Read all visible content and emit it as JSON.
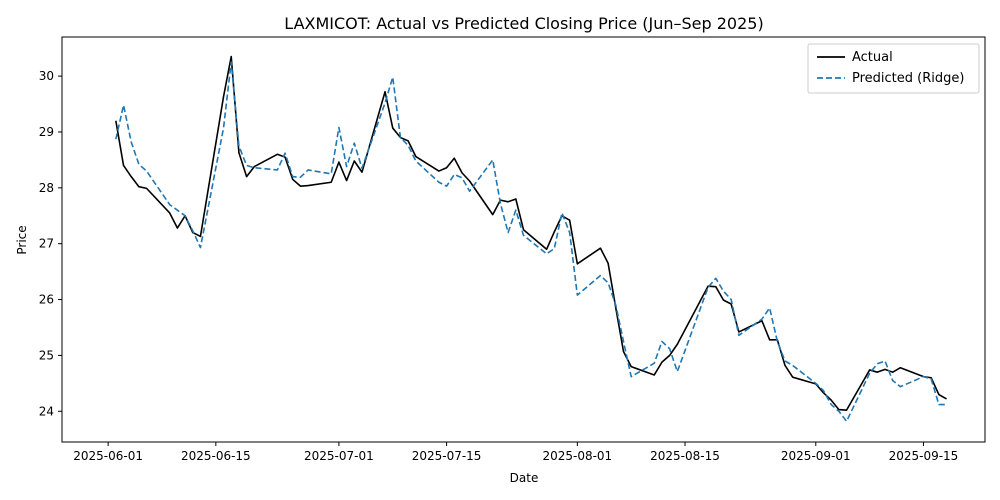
{
  "chart_data": {
    "type": "line",
    "title": "LAXMICOT: Actual vs Predicted Closing Price (Jun–Sep 2025)",
    "xlabel": "Date",
    "ylabel": "Price",
    "xlim": [
      "2025-05-26",
      "2025-09-23"
    ],
    "ylim": [
      23.45,
      30.7
    ],
    "x_ticks": [
      "2025-06-01",
      "2025-06-15",
      "2025-07-01",
      "2025-07-15",
      "2025-08-01",
      "2025-08-15",
      "2025-09-01",
      "2025-09-15"
    ],
    "y_ticks": [
      24,
      25,
      26,
      27,
      28,
      29,
      30
    ],
    "grid": false,
    "legend_position": "top-right",
    "x": [
      "2025-06-02",
      "2025-06-03",
      "2025-06-04",
      "2025-06-05",
      "2025-06-06",
      "2025-06-09",
      "2025-06-10",
      "2025-06-11",
      "2025-06-12",
      "2025-06-13",
      "2025-06-16",
      "2025-06-17",
      "2025-06-18",
      "2025-06-19",
      "2025-06-20",
      "2025-06-23",
      "2025-06-24",
      "2025-06-25",
      "2025-06-26",
      "2025-06-27",
      "2025-06-30",
      "2025-07-01",
      "2025-07-02",
      "2025-07-03",
      "2025-07-04",
      "2025-07-07",
      "2025-07-08",
      "2025-07-09",
      "2025-07-10",
      "2025-07-11",
      "2025-07-14",
      "2025-07-15",
      "2025-07-16",
      "2025-07-17",
      "2025-07-18",
      "2025-07-21",
      "2025-07-22",
      "2025-07-23",
      "2025-07-24",
      "2025-07-25",
      "2025-07-28",
      "2025-07-29",
      "2025-07-30",
      "2025-07-31",
      "2025-08-01",
      "2025-08-04",
      "2025-08-05",
      "2025-08-06",
      "2025-08-07",
      "2025-08-08",
      "2025-08-11",
      "2025-08-12",
      "2025-08-13",
      "2025-08-14",
      "2025-08-18",
      "2025-08-19",
      "2025-08-20",
      "2025-08-21",
      "2025-08-22",
      "2025-08-25",
      "2025-08-26",
      "2025-08-27",
      "2025-08-28",
      "2025-08-29",
      "2025-09-01",
      "2025-09-02",
      "2025-09-03",
      "2025-09-04",
      "2025-09-05",
      "2025-09-08",
      "2025-09-09",
      "2025-09-10",
      "2025-09-11",
      "2025-09-12",
      "2025-09-15",
      "2025-09-16",
      "2025-09-17",
      "2025-09-18"
    ],
    "series": [
      {
        "name": "Actual",
        "color": "#000000",
        "style": "solid",
        "values": [
          29.2,
          28.4,
          28.2,
          28.02,
          27.99,
          27.55,
          27.28,
          27.5,
          27.2,
          27.13,
          29.63,
          30.35,
          28.63,
          28.2,
          28.38,
          28.6,
          28.55,
          28.15,
          28.03,
          28.04,
          28.1,
          28.46,
          28.13,
          28.48,
          28.28,
          29.72,
          29.07,
          28.9,
          28.84,
          28.56,
          28.3,
          28.36,
          28.53,
          28.27,
          28.12,
          27.52,
          27.78,
          27.75,
          27.8,
          27.25,
          26.9,
          27.21,
          27.5,
          27.42,
          26.64,
          26.92,
          26.65,
          25.85,
          25.07,
          24.8,
          24.65,
          24.88,
          25.0,
          25.2,
          26.24,
          26.23,
          25.99,
          25.92,
          25.42,
          25.62,
          25.28,
          25.28,
          24.82,
          24.61,
          24.49,
          24.33,
          24.2,
          24.03,
          24.02,
          24.74,
          24.7,
          24.75,
          24.7,
          24.78,
          24.62,
          24.6,
          24.3,
          24.22
        ]
      },
      {
        "name": "Predicted (Ridge)",
        "color": "#1f77b4",
        "style": "dashed",
        "values": [
          28.87,
          29.48,
          28.82,
          28.42,
          28.3,
          27.7,
          27.6,
          27.5,
          27.23,
          26.93,
          29.07,
          30.25,
          28.75,
          28.4,
          28.36,
          28.32,
          28.62,
          28.2,
          28.19,
          28.32,
          28.25,
          29.08,
          28.38,
          28.8,
          28.35,
          29.52,
          29.98,
          28.9,
          28.76,
          28.48,
          28.1,
          28.03,
          28.24,
          28.18,
          27.94,
          28.5,
          27.72,
          27.2,
          27.6,
          27.15,
          26.82,
          26.91,
          27.55,
          27.2,
          26.08,
          26.43,
          26.3,
          25.9,
          25.25,
          24.62,
          24.86,
          25.25,
          25.12,
          24.71,
          26.22,
          26.38,
          26.15,
          26.0,
          25.36,
          25.65,
          25.85,
          25.25,
          24.9,
          24.82,
          24.5,
          24.37,
          24.12,
          24.0,
          23.82,
          24.68,
          24.85,
          24.9,
          24.55,
          24.44,
          24.62,
          24.58,
          24.12,
          24.12
        ]
      }
    ]
  }
}
